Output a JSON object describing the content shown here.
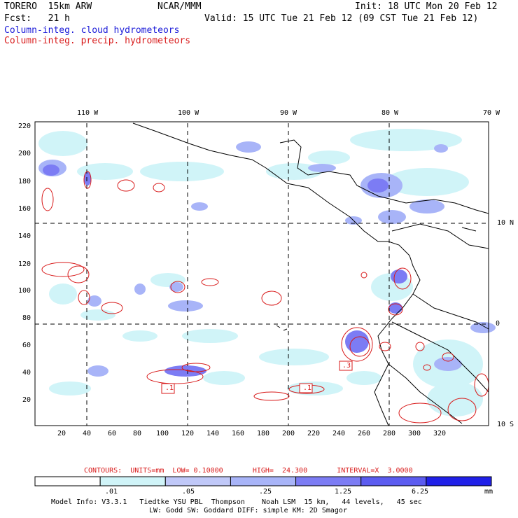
{
  "header": {
    "model": "TORERO  15km ARW",
    "org": "NCAR/MMM",
    "init": "Init: 18 UTC Mon 20 Feb 12",
    "fcst": "Fcst:   21 h",
    "valid": "Valid: 15 UTC Tue 21 Feb 12 (09 CST Tue 21 Feb 12)",
    "field1": "Column-integ. cloud hydrometeors",
    "field2": "Column-integ. precip. hydrometeors"
  },
  "colors": {
    "cloud_light": "#d0f4f8",
    "cloud_mid": "#a8b4f8",
    "cloud_dark": "#7c7cf4",
    "precip_contour": "#d81a1a",
    "title_blue": "#1a1ad8"
  },
  "lon_labels": [
    "110 W",
    "100 W",
    "90 W",
    "80 W",
    "70 W"
  ],
  "lat_labels": [
    "10 N",
    "0",
    "10 S"
  ],
  "y_ticks": [
    "220",
    "200",
    "180",
    "160",
    "140",
    "120",
    "100",
    "80",
    "60",
    "40",
    "20"
  ],
  "x_ticks": [
    "20",
    "40",
    "60",
    "80",
    "100",
    "120",
    "140",
    "160",
    "180",
    "200",
    "220",
    "240",
    "260",
    "280",
    "300",
    "320"
  ],
  "contour_labels": [
    ".1",
    ".1",
    ".3"
  ],
  "contour_info": "CONTOURS:  UNITS=mm  LOW= 0.10000       HIGH=  24.300       INTERVAL=X  3.0000",
  "colorbar": {
    "labels": [
      ".01",
      ".05",
      ".25",
      "1.25",
      "6.25"
    ],
    "units": "mm",
    "colors": [
      "#ffffff",
      "#d0f4f8",
      "#c0c8f8",
      "#a8b4f8",
      "#7c7cf4",
      "#5c5cf0",
      "#2020e8"
    ]
  },
  "model_info": {
    "line1": "Model Info: V3.3.1   Tiedtke YSU PBL  Thompson    Noah LSM  15 km,   44 levels,   45 sec",
    "line2": "LW: Godd SW: Goddard DIFF: simple KM: 2D Smagor"
  }
}
